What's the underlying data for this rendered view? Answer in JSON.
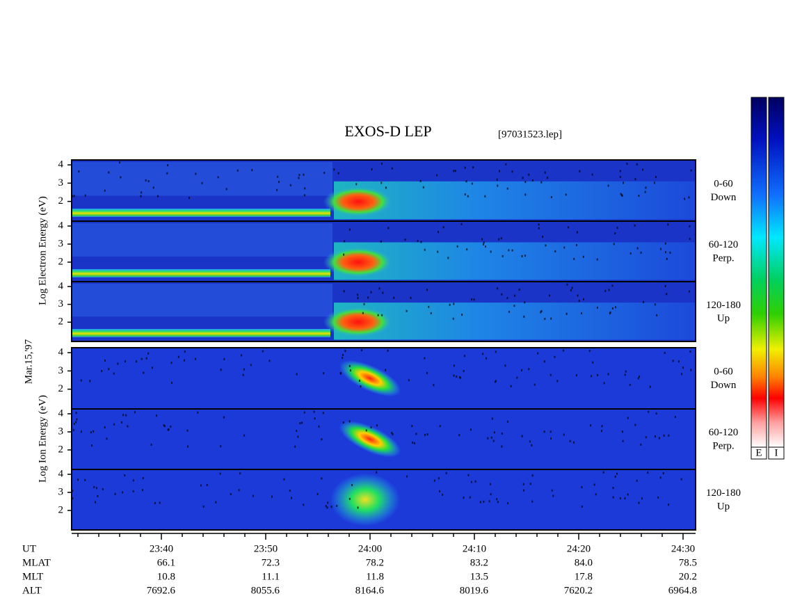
{
  "chart_data": {
    "type": "spectrogram",
    "title": "EXOS-D LEP",
    "file": "[97031523.lep]",
    "date": "Mar.15,'97",
    "x_label": "UT",
    "xlim": [
      1411.4,
      1471.2
    ],
    "xticks": [
      {
        "value": 1420,
        "label": "23:40"
      },
      {
        "value": 1430,
        "label": "23:50"
      },
      {
        "value": 1440,
        "label": "24:00"
      },
      {
        "value": 1450,
        "label": "24:10"
      },
      {
        "value": 1460,
        "label": "24:20"
      },
      {
        "value": 1470,
        "label": "24:30"
      }
    ],
    "xminor": [
      1412,
      1414,
      1416,
      1418,
      1422,
      1424,
      1426,
      1428,
      1432,
      1434,
      1436,
      1438,
      1442,
      1444,
      1446,
      1448,
      1452,
      1454,
      1456,
      1458,
      1462,
      1464,
      1466,
      1468
    ],
    "ylim": [
      0.92,
      4.27
    ],
    "yticks": [
      2,
      3,
      4
    ],
    "groups": [
      {
        "ylabel": "Log  Electron  Energy (eV)",
        "panels": [
          {
            "name": "0-60",
            "dir": "Down"
          },
          {
            "name": "60-120",
            "dir": "Perp."
          },
          {
            "name": "120-180",
            "dir": "Up"
          }
        ]
      },
      {
        "ylabel": "Log  Ion  Energy (eV)",
        "panels": [
          {
            "name": "0-60",
            "dir": "Down"
          },
          {
            "name": "60-120",
            "dir": "Perp."
          },
          {
            "name": "120-180",
            "dir": "Up"
          }
        ]
      }
    ],
    "rows": [
      {
        "label": "MLAT",
        "values": [
          "66.1",
          "72.3",
          "78.2",
          "83.2",
          "84.0",
          "78.5"
        ]
      },
      {
        "label": "MLT",
        "values": [
          "10.8",
          "11.1",
          "11.8",
          "13.5",
          "17.8",
          "20.2"
        ]
      },
      {
        "label": "ALT",
        "values": [
          "7692.6",
          "8055.6",
          "8164.6",
          "8019.6",
          "7620.2",
          "6964.8"
        ]
      }
    ],
    "colorbar_labels": [
      "E",
      "I"
    ]
  }
}
